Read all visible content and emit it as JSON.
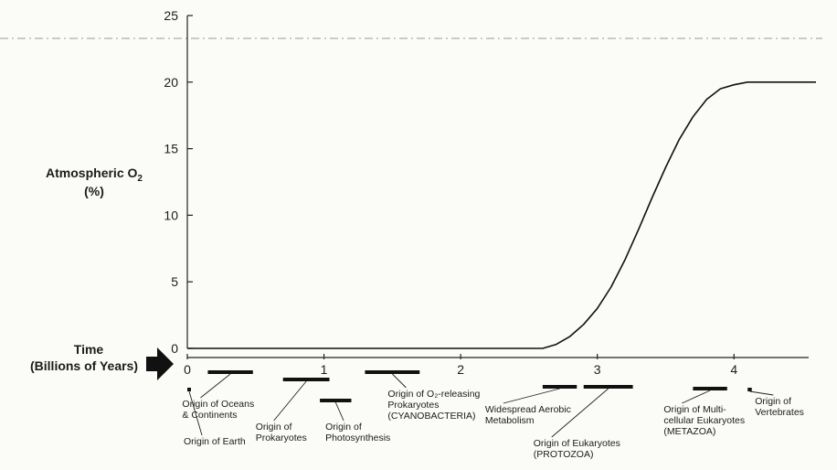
{
  "chart_data": {
    "type": "line",
    "y_label_line1": "Atmospheric O",
    "y_label_sub": "2",
    "y_label_line2": "(%)",
    "time_label_line1": "Time",
    "time_label_line2": "(Billions of Years)",
    "xlim": [
      0,
      4.6
    ],
    "ylim": [
      0,
      25
    ],
    "x_ticks": [
      0,
      1,
      2,
      3,
      4
    ],
    "y_ticks": [
      0,
      5,
      10,
      15,
      20,
      25
    ],
    "series": [
      {
        "x": [
          0,
          2.5,
          2.6,
          2.7,
          2.8,
          2.9,
          3.0,
          3.1,
          3.2,
          3.3,
          3.4,
          3.5,
          3.6,
          3.7,
          3.8,
          3.9,
          4.0,
          4.1,
          4.6
        ],
        "y": [
          0,
          0,
          0,
          0.3,
          0.9,
          1.8,
          3.0,
          4.6,
          6.6,
          8.9,
          11.3,
          13.6,
          15.7,
          17.4,
          18.7,
          19.5,
          19.8,
          20,
          20
        ]
      }
    ],
    "events": [
      {
        "lines": [
          "Origin of Earth"
        ],
        "bar": [
          0,
          0.02
        ]
      },
      {
        "lines": [
          "Origin of Oceans",
          "& Continents"
        ],
        "bar": [
          0.15,
          0.48
        ]
      },
      {
        "lines": [
          "Origin of",
          "Prokaryotes"
        ],
        "bar": [
          0.7,
          1.04
        ]
      },
      {
        "lines": [
          "Origin of",
          "Photosynthesis"
        ],
        "bar": [
          0.97,
          1.2
        ]
      },
      {
        "lines": [
          "Origin of O₂-releasing",
          "Prokaryotes",
          "(CYANOBACTERIA)"
        ],
        "bar": [
          1.3,
          1.7
        ]
      },
      {
        "lines": [
          "Widespread Aerobic",
          "Metabolism"
        ],
        "bar": [
          2.6,
          2.85
        ]
      },
      {
        "lines": [
          "Origin of Eukaryotes",
          "(PROTOZOA)"
        ],
        "bar": [
          2.9,
          3.26
        ]
      },
      {
        "lines": [
          "Origin of Multi-",
          "cellular Eukaryotes",
          "(METAZOA)"
        ],
        "bar": [
          3.7,
          3.95
        ]
      },
      {
        "lines": [
          "Origin of",
          "Vertebrates"
        ],
        "bar": [
          4.1,
          4.13
        ]
      }
    ]
  }
}
